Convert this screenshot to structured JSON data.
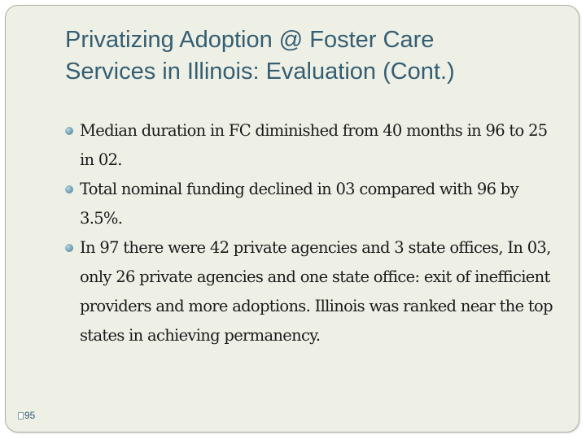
{
  "title": {
    "line1": "Privatizing Adoption @ Foster Care",
    "line2": "Services in Illinois: Evaluation (Cont.)"
  },
  "bullets": [
    "Median duration in FC diminished from 40 months in 96 to 25 in 02.",
    "Total nominal funding declined in 03 compared with 96 by 3.5%.",
    "In 97 there were 42 private agencies and 3 state offices, In 03, only 26 private agencies and one state office: exit of inefficient providers and more adoptions.  Illinois was ranked near the top states in achieving permanency."
  ],
  "slide_number": "95",
  "colors": {
    "title": "#355e73",
    "background": "#eef0e6",
    "bullet": "#6d9db3"
  }
}
